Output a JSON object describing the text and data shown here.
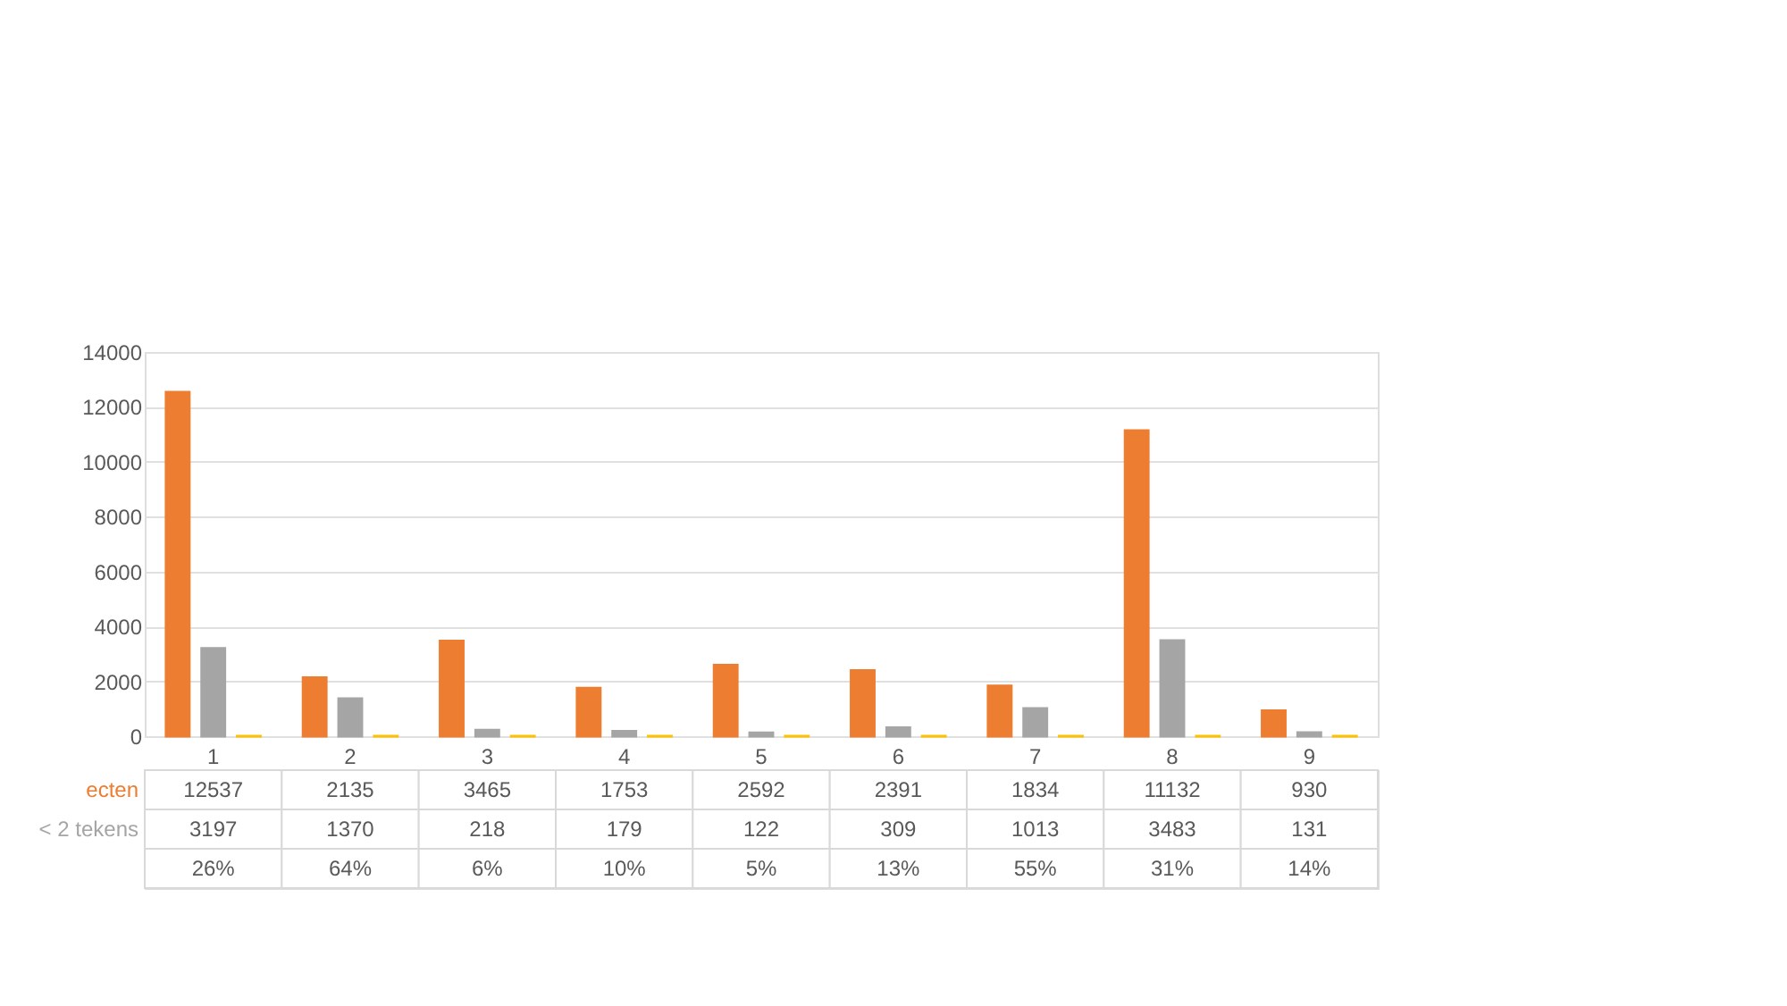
{
  "chart_data": {
    "type": "bar",
    "categories": [
      "1",
      "2",
      "3",
      "4",
      "5",
      "6",
      "7",
      "8",
      "9"
    ],
    "series": [
      {
        "name": "ecten",
        "color": "#ed7d31",
        "values": [
          12537,
          2135,
          3465,
          1753,
          2592,
          2391,
          1834,
          11132,
          930
        ]
      },
      {
        "name": "< 2 tekens",
        "color": "#a5a5a5",
        "values": [
          3197,
          1370,
          218,
          179,
          122,
          309,
          1013,
          3483,
          131
        ]
      },
      {
        "color": "#ffc000",
        "values": [
          0.26,
          0.64,
          0.06,
          0.1,
          0.05,
          0.13,
          0.55,
          0.31,
          0.14
        ],
        "value_labels": [
          "26%",
          "64%",
          "6%",
          "10%",
          "5%",
          "13%",
          "55%",
          "31%",
          "14%"
        ]
      }
    ],
    "data_labels": true,
    "ylim": [
      0,
      14000
    ],
    "yticks": [
      0,
      2000,
      4000,
      6000,
      8000,
      10000,
      12000,
      14000
    ],
    "grid": "y",
    "legend": false
  }
}
